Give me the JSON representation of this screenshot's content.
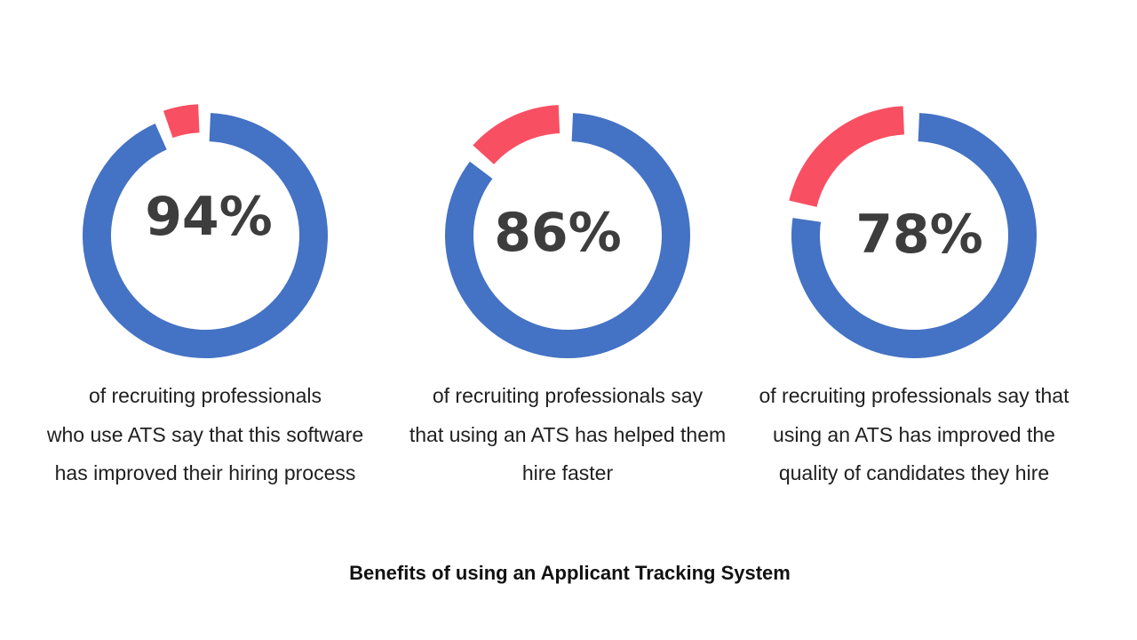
{
  "colors": {
    "primary": "#4472c4",
    "highlight": "#f94f63",
    "text": "#3d3d3d"
  },
  "footer_title": "Benefits of using an Applicant Tracking System",
  "chart_data": [
    {
      "type": "pie",
      "value_label": "94%",
      "values": [
        94,
        6
      ],
      "caption": [
        "of recruiting professionals",
        "who use ATS say that this software",
        "has improved their hiring process"
      ]
    },
    {
      "type": "pie",
      "value_label": "86%",
      "values": [
        86,
        14
      ],
      "caption": [
        "of recruiting professionals say",
        "that using an ATS has helped them",
        "hire faster"
      ]
    },
    {
      "type": "pie",
      "value_label": "78%",
      "values": [
        78,
        22
      ],
      "caption": [
        "of recruiting professionals say that",
        "using an ATS has improved the",
        "quality of candidates they hire"
      ]
    }
  ]
}
